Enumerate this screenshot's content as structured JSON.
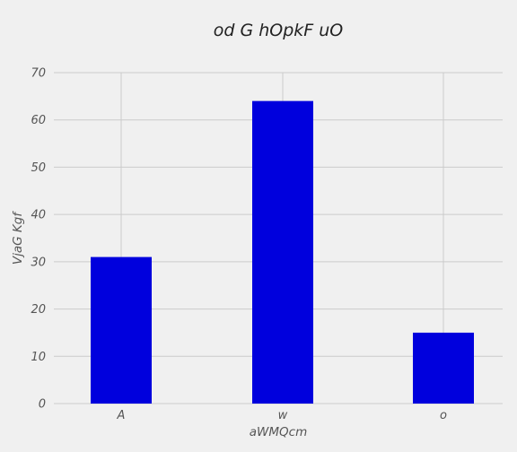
{
  "chart_data": {
    "type": "bar",
    "title": "od G  hOpkF uO",
    "xlabel": "aWMQcm",
    "ylabel": "VjaG Kgf",
    "categories": [
      "A",
      "w",
      "o"
    ],
    "values": [
      31,
      64,
      15
    ],
    "ylim": [
      0,
      70
    ],
    "yticks": [
      "0",
      "10",
      "20",
      "30",
      "40",
      "50",
      "60",
      "70"
    ],
    "grid": true,
    "bar_color": "#0000dd",
    "background_color": "#f0f0f0",
    "grid_color": "#cbcbcb"
  }
}
